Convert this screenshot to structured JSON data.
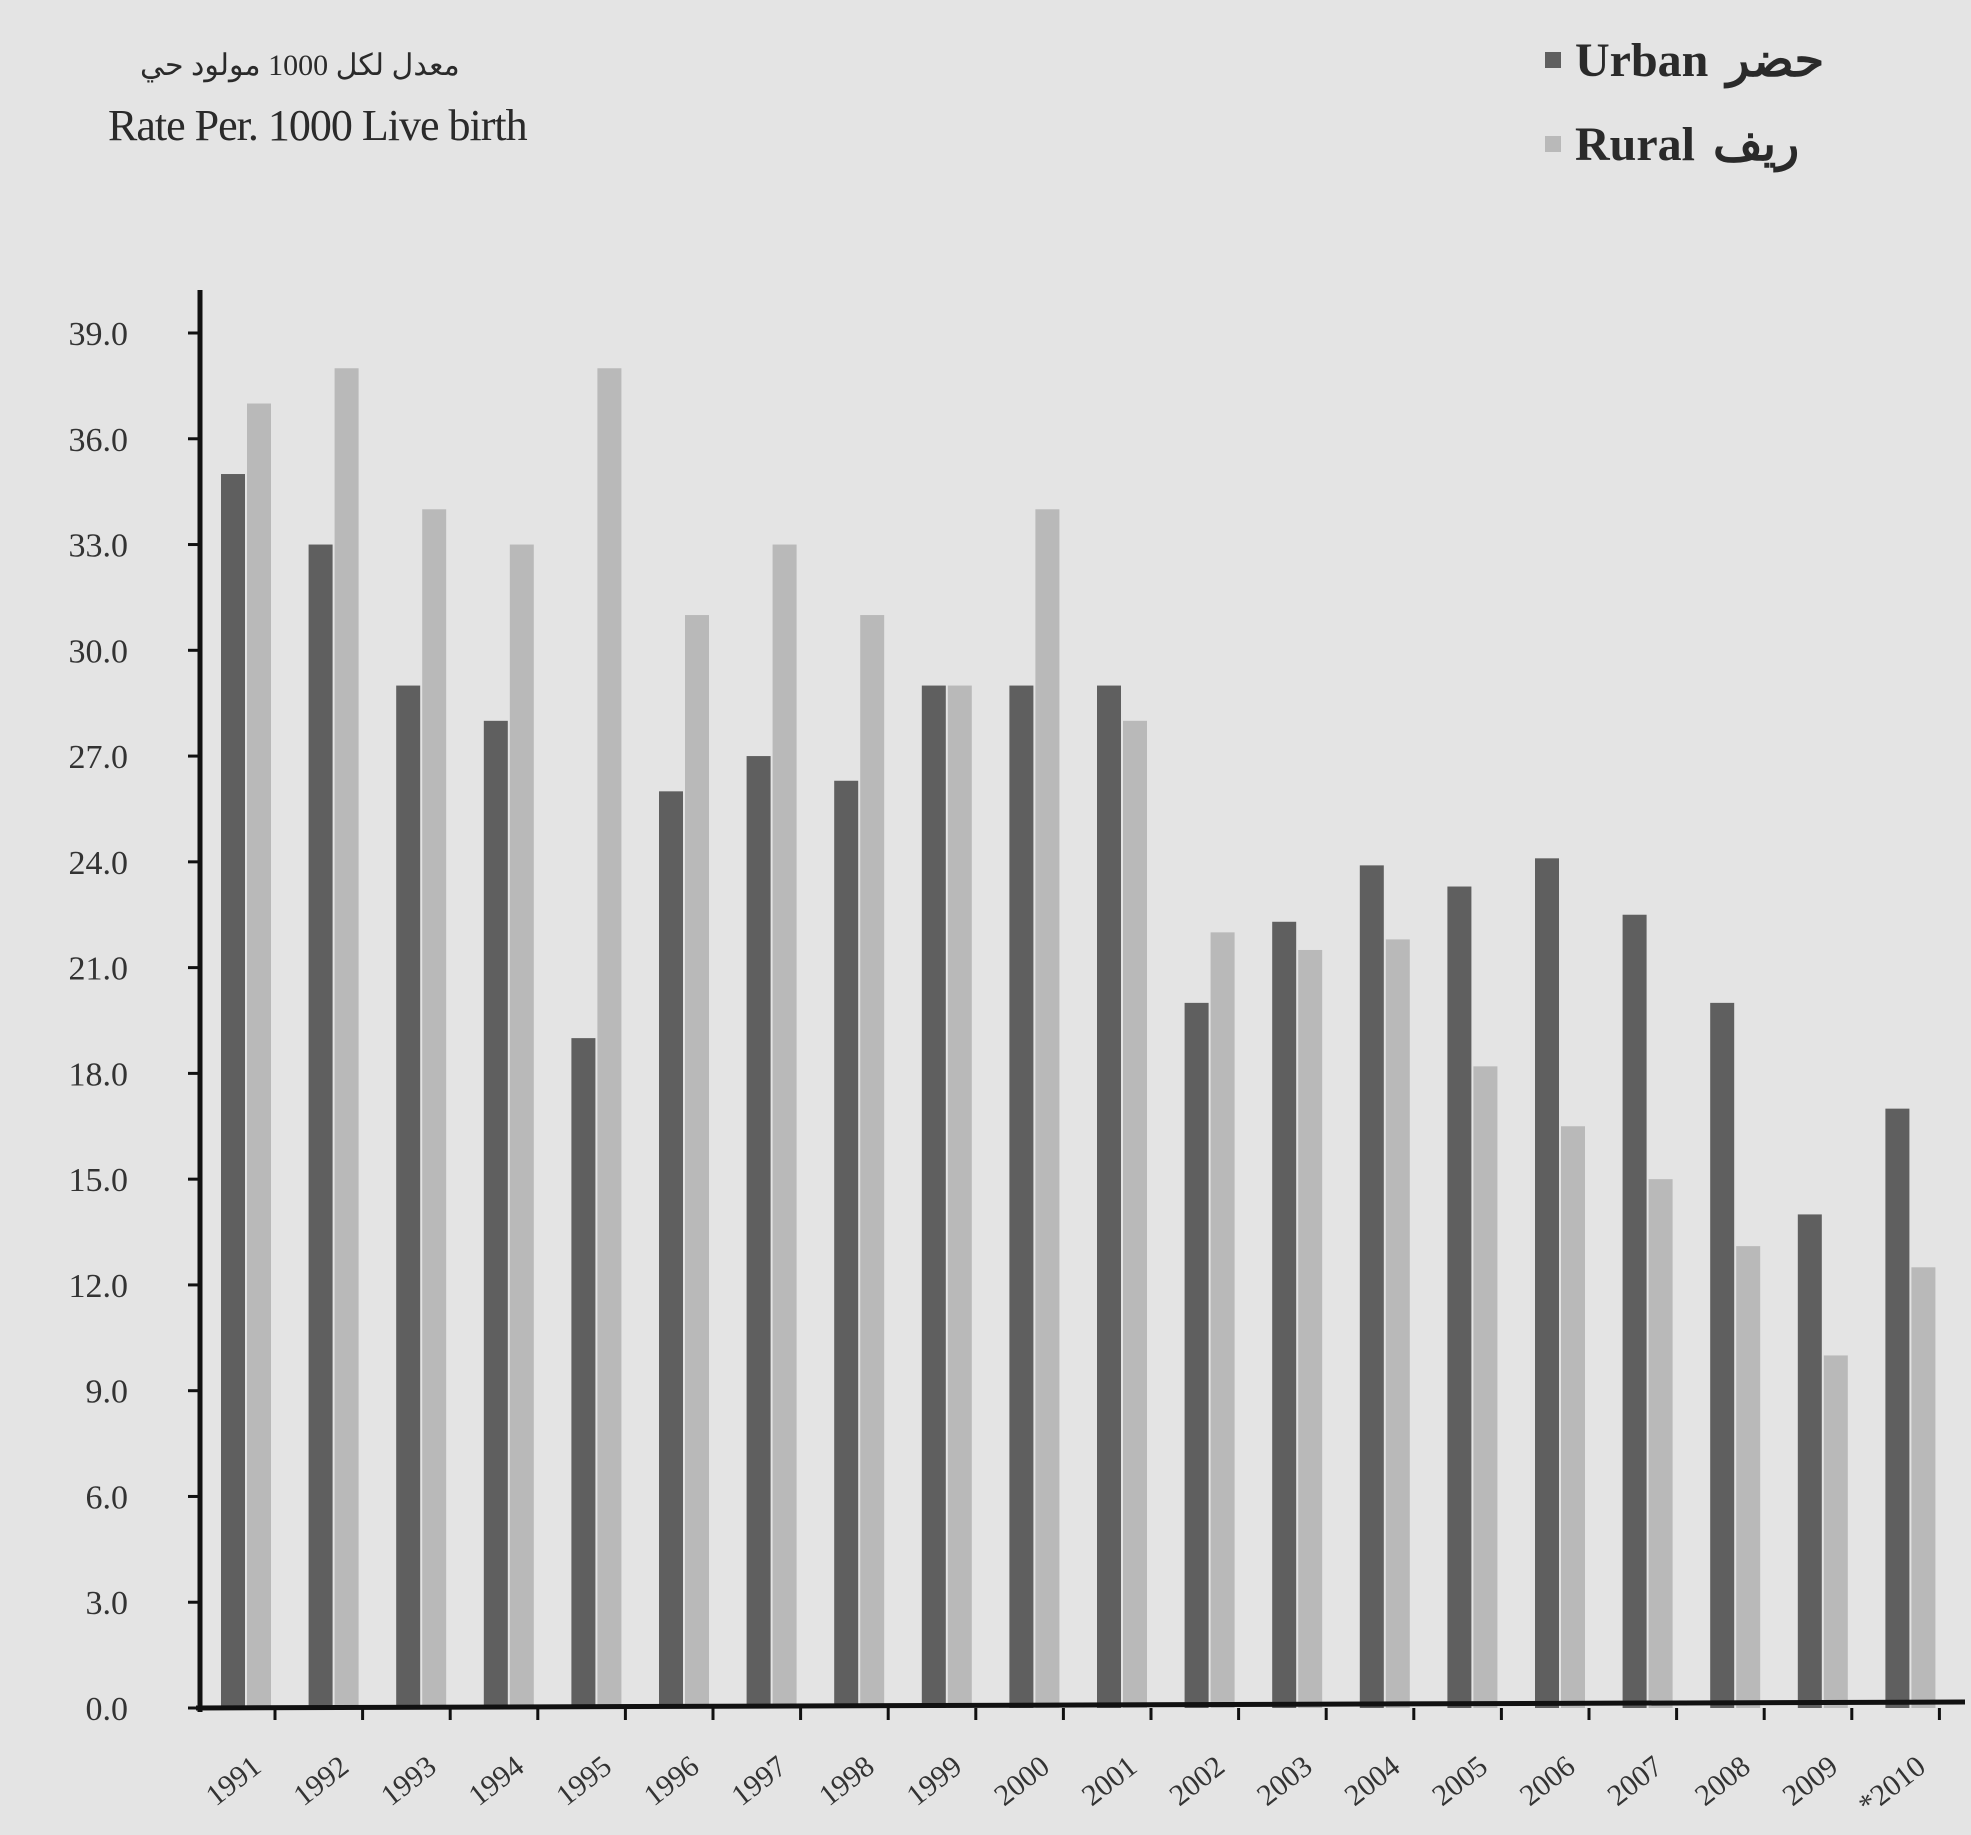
{
  "chart_data": {
    "type": "bar",
    "unit_label_ar": "معدل لكل 1000 مولود حي",
    "unit_label_en": "Rate Per. 1000 Live birth",
    "ylim": [
      0,
      39
    ],
    "yticks": [
      "0.0",
      "3.0",
      "6.0",
      "9.0",
      "12.0",
      "15.0",
      "18.0",
      "21.0",
      "24.0",
      "27.0",
      "30.0",
      "33.0",
      "36.0",
      "39.0"
    ],
    "categories": [
      "1991",
      "1992",
      "1993",
      "1994",
      "1995",
      "1996",
      "1997",
      "1998",
      "1999",
      "2000",
      "2001",
      "2002",
      "2003",
      "2004",
      "2005",
      "2006",
      "2007",
      "2008",
      "2009",
      "*2010"
    ],
    "series": [
      {
        "name": "Urban",
        "name_ar": "حضر",
        "color": "#5f5f5f",
        "values": [
          35.0,
          33.0,
          29.0,
          28.0,
          19.0,
          26.0,
          27.0,
          26.3,
          29.0,
          29.0,
          29.0,
          20.0,
          22.3,
          23.9,
          23.3,
          24.1,
          22.5,
          20.0,
          14.0,
          17.0
        ]
      },
      {
        "name": "Rural",
        "name_ar": "ريف",
        "color": "#b9b9b9",
        "values": [
          37.0,
          38.0,
          34.0,
          33.0,
          38.0,
          31.0,
          33.0,
          31.0,
          29.0,
          34.0,
          28.0,
          22.0,
          21.5,
          21.8,
          18.2,
          16.5,
          15.0,
          13.1,
          10.0,
          12.5
        ]
      }
    ],
    "legend": "top-right",
    "grid": false
  }
}
